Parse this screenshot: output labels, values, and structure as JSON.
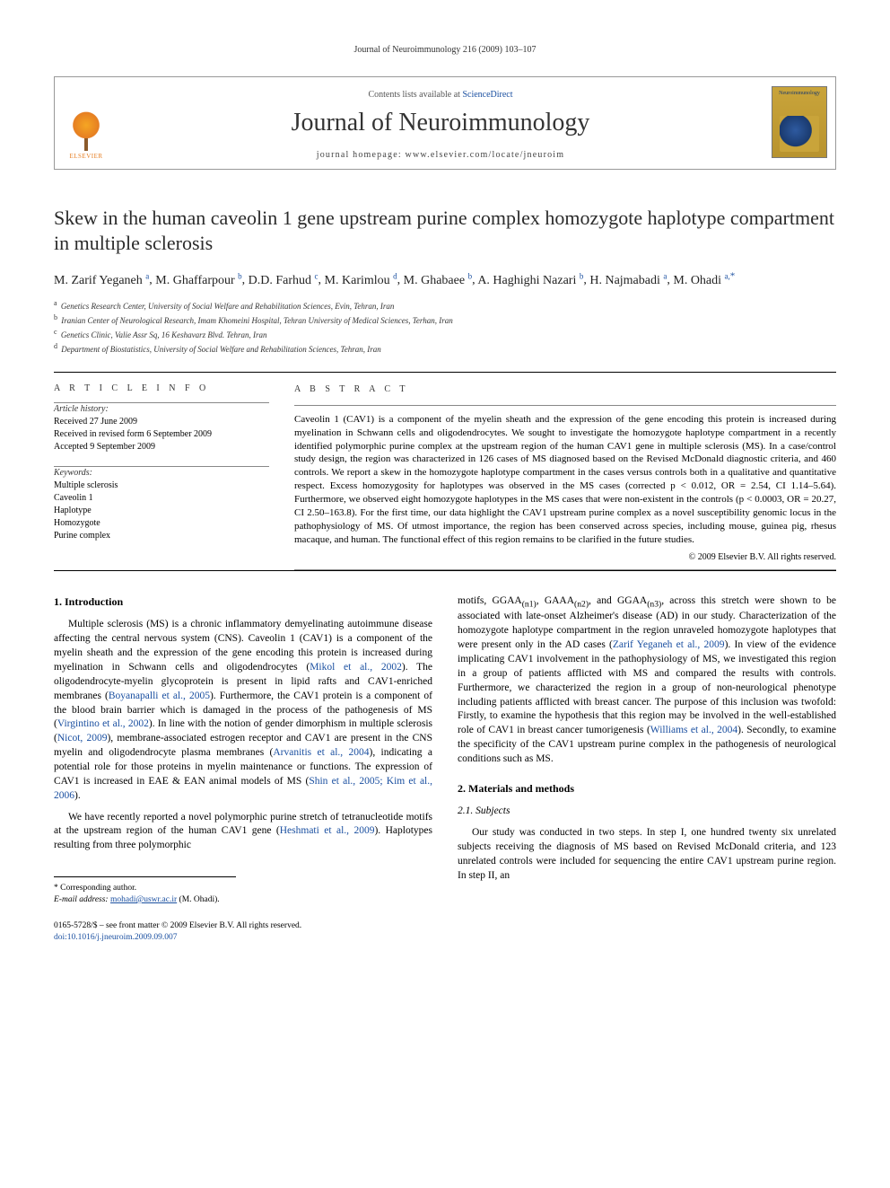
{
  "running_header": "Journal of Neuroimmunology 216 (2009) 103–107",
  "masthead": {
    "contents_prefix": "Contents lists available at ",
    "contents_link": "ScienceDirect",
    "journal_name": "Journal of Neuroimmunology",
    "homepage_prefix": "journal homepage: ",
    "homepage_url": "www.elsevier.com/locate/jneuroim",
    "publisher_word": "ELSEVIER",
    "cover_text": "Neuroimmunology"
  },
  "title": "Skew in the human caveolin 1 gene upstream purine complex homozygote haplotype compartment in multiple sclerosis",
  "authors_html": [
    {
      "name": "M. Zarif Yeganeh",
      "sup": "a"
    },
    {
      "name": "M. Ghaffarpour",
      "sup": "b"
    },
    {
      "name": "D.D. Farhud",
      "sup": "c"
    },
    {
      "name": "M. Karimlou",
      "sup": "d"
    },
    {
      "name": "M. Ghabaee",
      "sup": "b"
    },
    {
      "name": "A. Haghighi Nazari",
      "sup": "b"
    },
    {
      "name": "H. Najmabadi",
      "sup": "a"
    },
    {
      "name": "M. Ohadi",
      "sup": "a,",
      "corr": "*"
    }
  ],
  "affiliations": [
    {
      "label": "a",
      "text": "Genetics Research Center, University of Social Welfare and Rehabilitation Sciences, Evin, Tehran, Iran"
    },
    {
      "label": "b",
      "text": "Iranian Center of Neurological Research, Imam Khomeini Hospital, Tehran University of Medical Sciences, Terhan, Iran"
    },
    {
      "label": "c",
      "text": "Genetics Clinic, Valie Assr Sq, 16 Keshavarz Blvd. Tehran, Iran"
    },
    {
      "label": "d",
      "text": "Department of Biostatistics, University of Social Welfare and Rehabilitation Sciences, Tehran, Iran"
    }
  ],
  "article_info": {
    "heading": "A R T I C L E   I N F O",
    "history_label": "Article history:",
    "received": "Received 27 June 2009",
    "revised": "Received in revised form 6 September 2009",
    "accepted": "Accepted 9 September 2009",
    "keywords_label": "Keywords:",
    "keywords": [
      "Multiple sclerosis",
      "Caveolin 1",
      "Haplotype",
      "Homozygote",
      "Purine complex"
    ]
  },
  "abstract": {
    "heading": "A B S T R A C T",
    "text": "Caveolin 1 (CAV1) is a component of the myelin sheath and the expression of the gene encoding this protein is increased during myelination in Schwann cells and oligodendrocytes. We sought to investigate the homozygote haplotype compartment in a recently identified polymorphic purine complex at the upstream region of the human CAV1 gene in multiple sclerosis (MS). In a case/control study design, the region was characterized in 126 cases of MS diagnosed based on the Revised McDonald diagnostic criteria, and 460 controls. We report a skew in the homozygote haplotype compartment in the cases versus controls both in a qualitative and quantitative respect. Excess homozygosity for haplotypes was observed in the MS cases (corrected p < 0.012, OR = 2.54, CI 1.14–5.64). Furthermore, we observed eight homozygote haplotypes in the MS cases that were non-existent in the controls (p < 0.0003, OR = 20.27, CI 2.50–163.8). For the first time, our data highlight the CAV1 upstream purine complex as a novel susceptibility genomic locus in the pathophysiology of MS. Of utmost importance, the region has been conserved across species, including mouse, guinea pig, rhesus macaque, and human. The functional effect of this region remains to be clarified in the future studies.",
    "copyright": "© 2009 Elsevier B.V. All rights reserved."
  },
  "sections": {
    "intro_heading": "1. Introduction",
    "intro_p1": "Multiple sclerosis (MS) is a chronic inflammatory demyelinating autoimmune disease affecting the central nervous system (CNS). Caveolin 1 (CAV1) is a component of the myelin sheath and the expression of the gene encoding this protein is increased during myelination in Schwann cells and oligodendrocytes (Mikol et al., 2002). The oligodendrocyte-myelin glycoprotein is present in lipid rafts and CAV1-enriched membranes (Boyanapalli et al., 2005). Furthermore, the CAV1 protein is a component of the blood brain barrier which is damaged in the process of the pathogenesis of MS (Virgintino et al., 2002). In line with the notion of gender dimorphism in multiple sclerosis (Nicot, 2009), membrane-associated estrogen receptor and CAV1 are present in the CNS myelin and oligodendrocyte plasma membranes (Arvanitis et al., 2004), indicating a potential role for those proteins in myelin maintenance or functions. The expression of CAV1 is increased in EAE & EAN animal models of MS (Shin et al., 2005; Kim et al., 2006).",
    "intro_p2": "We have recently reported a novel polymorphic purine stretch of tetranucleotide motifs at the upstream region of the human CAV1 gene (Heshmati et al., 2009). Haplotypes resulting from three polymorphic",
    "intro_col2": "motifs, GGAA(n1), GAAA(n2), and GGAA(n3), across this stretch were shown to be associated with late-onset Alzheimer's disease (AD) in our study. Characterization of the homozygote haplotype compartment in the region unraveled homozygote haplotypes that were present only in the AD cases (Zarif Yeganeh et al., 2009). In view of the evidence implicating CAV1 involvement in the pathophysiology of MS, we investigated this region in a group of patients afflicted with MS and compared the results with controls. Furthermore, we characterized the region in a group of non-neurological phenotype including patients afflicted with breast cancer. The purpose of this inclusion was twofold: Firstly, to examine the hypothesis that this region may be involved in the well-established role of CAV1 in breast cancer tumorigenesis (Williams et al., 2004). Secondly, to examine the specificity of the CAV1 upstream purine complex in the pathogenesis of neurological conditions such as MS.",
    "methods_heading": "2. Materials and methods",
    "subjects_heading": "2.1. Subjects",
    "subjects_p1": "Our study was conducted in two steps. In step I, one hundred twenty six unrelated subjects receiving the diagnosis of MS based on Revised McDonald criteria, and 123 unrelated controls were included for sequencing the entire CAV1 upstream purine region. In step II, an"
  },
  "footnotes": {
    "corr_label": "* Corresponding author.",
    "email_label": "E-mail address:",
    "email": "mohadi@uswr.ac.ir",
    "email_owner": "(M. Ohadi)."
  },
  "footer": {
    "issn_line": "0165-5728/$ – see front matter © 2009 Elsevier B.V. All rights reserved.",
    "doi_line": "doi:10.1016/j.jneuroim.2009.09.007"
  },
  "colors": {
    "link": "#1a4fa0",
    "text": "#000000",
    "muted": "#555555"
  }
}
